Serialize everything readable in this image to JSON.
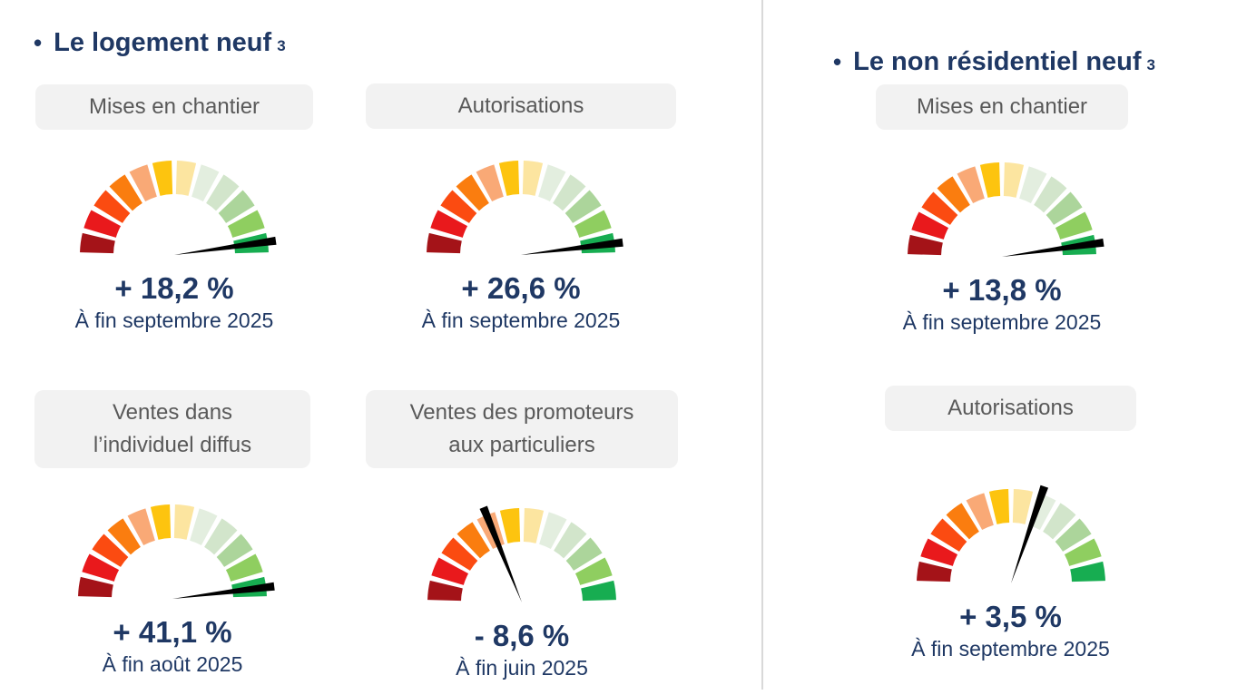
{
  "palette": {
    "navy": "#1F3864",
    "label_bg": "#F2F2F2",
    "label_text": "#595959",
    "divider": "#D9D9D9",
    "needle": "#000000",
    "segments": [
      "#A41318",
      "#E9191C",
      "#FB4B11",
      "#FA7D0F",
      "#F9A976",
      "#FDC40F",
      "#FCE5A0",
      "#E3EEDF",
      "#D2E5CB",
      "#ACD59B",
      "#8FCE60",
      "#17AD51"
    ]
  },
  "sections": [
    {
      "bullet": "•",
      "title": "Le logement neuf",
      "title_sup": "3",
      "gauges": [
        {
          "label": "Mises en chantier",
          "value": "+ 18,2 %",
          "period": "À fin septembre 2025",
          "needle_deg": 8
        },
        {
          "label": "Autorisations",
          "value": "+ 26,6 %",
          "period": "À fin septembre 2025",
          "needle_deg": 7
        },
        {
          "label": "Ventes dans\nl’individuel diffus",
          "value": "+ 41,1 %",
          "period": "À fin août 2025",
          "needle_deg": 7
        },
        {
          "label": "Ventes des promoteurs\naux particuliers",
          "value": "- 8,6 %",
          "period": "À fin juin 2025",
          "needle_deg": 112
        }
      ]
    },
    {
      "bullet": "•",
      "title": "Le non résidentiel neuf",
      "title_sup": "3",
      "gauges": [
        {
          "label": "Mises en chantier",
          "value": "+ 13,8 %",
          "period": "À fin septembre 2025",
          "needle_deg": 8
        },
        {
          "label": "Autorisations",
          "value": "+ 3,5 %",
          "period": "À fin septembre 2025",
          "needle_deg": 71
        }
      ]
    }
  ],
  "chart_data": [
    {
      "type": "gauge",
      "section": "Le logement neuf",
      "title": "Mises en chantier",
      "value_pct": 18.2,
      "value_label": "+ 18,2 %",
      "period": "À fin septembre 2025",
      "needle_angle_deg": 8,
      "arc_deg": 180,
      "segments": 12,
      "color_scale": "dark red (left/negative) to green (right/positive)"
    },
    {
      "type": "gauge",
      "section": "Le logement neuf",
      "title": "Autorisations",
      "value_pct": 26.6,
      "value_label": "+ 26,6 %",
      "period": "À fin septembre 2025",
      "needle_angle_deg": 7,
      "arc_deg": 180,
      "segments": 12,
      "color_scale": "dark red (left/negative) to green (right/positive)"
    },
    {
      "type": "gauge",
      "section": "Le logement neuf",
      "title": "Ventes dans l’individuel diffus",
      "value_pct": 41.1,
      "value_label": "+ 41,1 %",
      "period": "À fin août 2025",
      "needle_angle_deg": 7,
      "arc_deg": 180,
      "segments": 12,
      "color_scale": "dark red (left/negative) to green (right/positive)"
    },
    {
      "type": "gauge",
      "section": "Le logement neuf",
      "title": "Ventes des promoteurs aux particuliers",
      "value_pct": -8.6,
      "value_label": "- 8,6 %",
      "period": "À fin juin 2025",
      "needle_angle_deg": 112,
      "arc_deg": 180,
      "segments": 12,
      "color_scale": "dark red (left/negative) to green (right/positive)"
    },
    {
      "type": "gauge",
      "section": "Le non résidentiel neuf",
      "title": "Mises en chantier",
      "value_pct": 13.8,
      "value_label": "+ 13,8 %",
      "period": "À fin septembre 2025",
      "needle_angle_deg": 8,
      "arc_deg": 180,
      "segments": 12,
      "color_scale": "dark red (left/negative) to green (right/positive)"
    },
    {
      "type": "gauge",
      "section": "Le non résidentiel neuf",
      "title": "Autorisations",
      "value_pct": 3.5,
      "value_label": "+ 3,5 %",
      "period": "À fin septembre 2025",
      "needle_angle_deg": 71,
      "arc_deg": 180,
      "segments": 12,
      "color_scale": "dark red (left/negative) to green (right/positive)"
    }
  ],
  "needle_angle_convention": "degrees counterclockwise from the right end of the dial: 0 = far right (max positive), 90 = straight up (zero), 180 = far left (max negative)"
}
